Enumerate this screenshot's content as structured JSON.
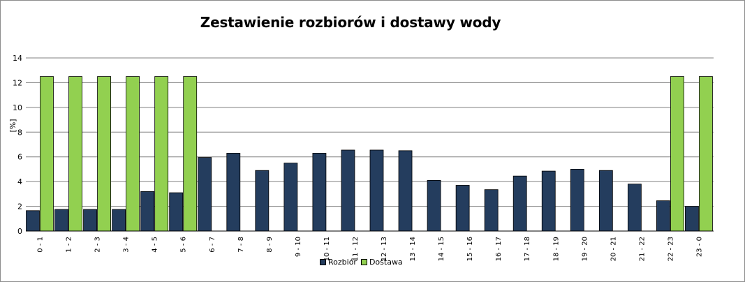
{
  "chart_data": {
    "type": "bar",
    "title": "Zestawienie rozbiorów i dostawy wody",
    "ylabel": "[%]",
    "xlabel": "",
    "ylim": [
      0,
      14
    ],
    "yticks": [
      0,
      2,
      4,
      6,
      8,
      10,
      12,
      14
    ],
    "grid": true,
    "legend_position": "bottom",
    "categories": [
      "0 - 1",
      "1 - 2",
      "2 - 3",
      "3 - 4",
      "4 - 5",
      "5 - 6",
      "6 - 7",
      "7 - 8",
      "8 - 9",
      "9 - 10",
      "10 - 11",
      "11 - 12",
      "12 - 13",
      "13 - 14",
      "14 - 15",
      "15 - 16",
      "16 - 17",
      "17 - 18",
      "18 - 19",
      "19 - 20",
      "20 - 21",
      "21 - 22",
      "22 - 23",
      "23 - 0"
    ],
    "series": [
      {
        "name": "Rozbiór",
        "color": "#243d5e",
        "values": [
          1.65,
          1.75,
          1.75,
          1.75,
          3.2,
          3.1,
          5.95,
          6.3,
          4.9,
          5.5,
          6.3,
          6.55,
          6.55,
          6.5,
          4.1,
          3.7,
          3.35,
          4.45,
          4.85,
          5.0,
          4.9,
          3.8,
          2.45,
          2.0
        ]
      },
      {
        "name": "Dostawa",
        "color": "#92d050",
        "values": [
          12.5,
          12.5,
          12.5,
          12.5,
          12.5,
          12.5,
          0,
          0,
          0,
          0,
          0,
          0,
          0,
          0,
          0,
          0,
          0,
          0,
          0,
          0,
          0,
          0,
          12.5,
          12.5
        ]
      }
    ]
  }
}
